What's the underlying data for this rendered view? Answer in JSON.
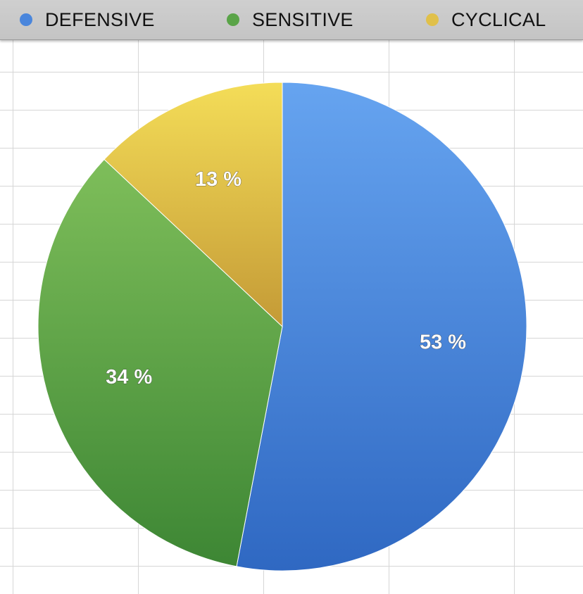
{
  "chart_data": {
    "type": "pie",
    "title": "",
    "legend": "top",
    "slices": [
      {
        "name": "DEFENSIVE",
        "value": 53,
        "label": "53 %",
        "color": "#4a86dc"
      },
      {
        "name": "SENSITIVE",
        "value": 34,
        "label": "34 %",
        "color": "#5aa448"
      },
      {
        "name": "CYCLICAL",
        "value": 13,
        "label": "13 %",
        "color": "#e0c04a"
      }
    ]
  }
}
